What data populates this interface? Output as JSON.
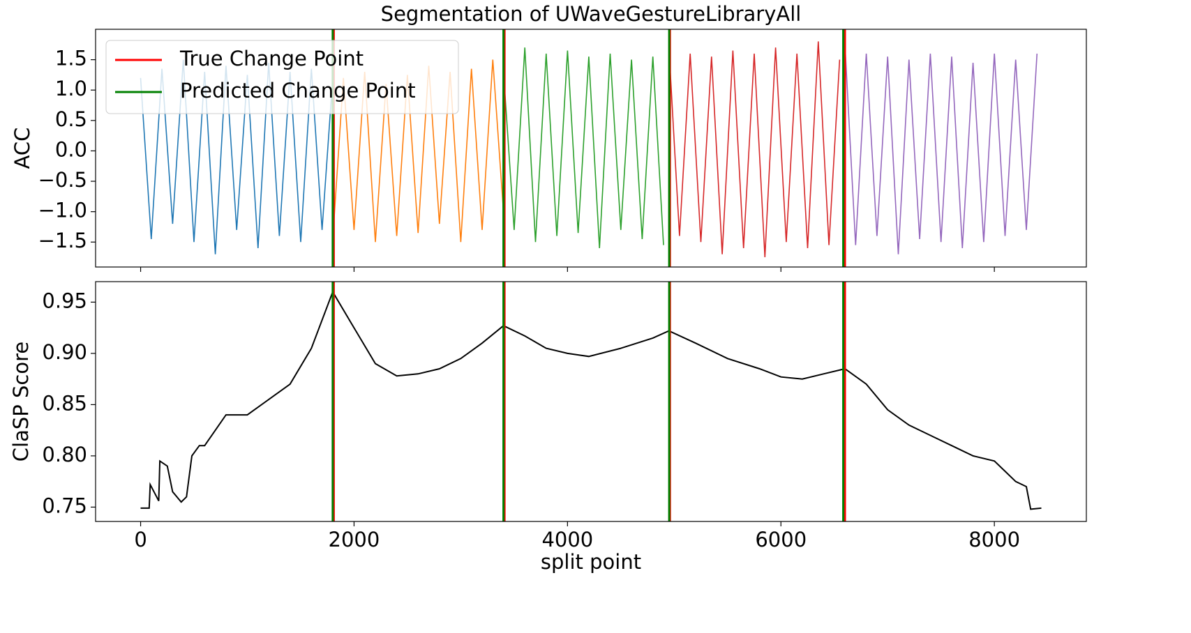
{
  "chart_data": [
    {
      "type": "line",
      "title": "Segmentation of UWaveGestureLibraryAll",
      "ylabel": "ACC",
      "xlim": [
        -422,
        8862
      ],
      "xticks": [
        0,
        2000,
        4000,
        6000,
        8000
      ],
      "ylim": [
        -1.91,
        2.0
      ],
      "yticks": [
        {
          "value": -1.5,
          "label": "−1.5"
        },
        {
          "value": -1.0,
          "label": "−1.0"
        },
        {
          "value": -0.5,
          "label": "−0.5"
        },
        {
          "value": 0,
          "label": "0.0"
        },
        0.5,
        {
          "value": 1.0,
          "label": "1.0"
        },
        1.5
      ],
      "legend": "upper left",
      "change_points": [
        {
          "name": "True Change Point",
          "color": "#ff0000",
          "x": [
            1810,
            3410,
            4960,
            6600
          ]
        },
        {
          "name": "Predicted Change Point",
          "color": "#008000",
          "x": [
            1800,
            3400,
            4953,
            6584
          ]
        }
      ],
      "series": [
        {
          "color": "#1f77b4",
          "x": [
            0,
            100,
            200,
            300,
            400,
            500,
            600,
            700,
            800,
            900,
            1000,
            1100,
            1200,
            1300,
            1400,
            1500,
            1600,
            1700,
            1800
          ],
          "values": [
            1.2,
            -1.45,
            1.35,
            -1.2,
            1.5,
            -1.5,
            1.3,
            -1.7,
            1.4,
            -1.3,
            1.25,
            -1.6,
            1.45,
            -1.4,
            1.3,
            -1.5,
            1.35,
            -1.3,
            1.2
          ]
        },
        {
          "color": "#ff7f0e",
          "x": [
            1800,
            1900,
            2000,
            2100,
            2200,
            2300,
            2400,
            2500,
            2600,
            2700,
            2800,
            2900,
            3000,
            3100,
            3200,
            3300,
            3400
          ],
          "values": [
            -1.45,
            1.2,
            -1.3,
            1.3,
            -1.5,
            1.1,
            -1.4,
            1.25,
            -1.35,
            1.4,
            -1.2,
            1.3,
            -1.5,
            1.35,
            -1.3,
            1.5,
            -1.0
          ]
        },
        {
          "color": "#2ca02c",
          "x": [
            3400,
            3500,
            3600,
            3700,
            3800,
            3900,
            4000,
            4100,
            4200,
            4300,
            4400,
            4500,
            4600,
            4700,
            4800,
            4900
          ],
          "values": [
            1.3,
            -1.3,
            1.7,
            -1.5,
            1.6,
            -1.4,
            1.65,
            -1.35,
            1.55,
            -1.6,
            1.6,
            -1.3,
            1.5,
            -1.45,
            1.55,
            -1.55
          ]
        },
        {
          "color": "#d62728",
          "x": [
            4950,
            5050,
            5150,
            5250,
            5350,
            5450,
            5550,
            5650,
            5750,
            5850,
            5950,
            6050,
            6150,
            6250,
            6350,
            6450,
            6550
          ],
          "values": [
            1.7,
            -1.4,
            1.6,
            -1.5,
            1.55,
            -1.7,
            1.65,
            -1.6,
            1.6,
            -1.75,
            1.7,
            -1.5,
            1.6,
            -1.6,
            1.8,
            -1.55,
            1.5
          ]
        },
        {
          "color": "#9467bd",
          "x": [
            6600,
            6700,
            6800,
            6900,
            7000,
            7100,
            7200,
            7300,
            7400,
            7500,
            7600,
            7700,
            7800,
            7900,
            8000,
            8100,
            8200,
            8300,
            8400
          ],
          "values": [
            1.75,
            -1.55,
            1.6,
            -1.4,
            1.55,
            -1.7,
            1.5,
            -1.45,
            1.6,
            -1.5,
            1.55,
            -1.6,
            1.45,
            -1.5,
            1.6,
            -1.4,
            1.5,
            -1.3,
            1.6
          ]
        }
      ]
    },
    {
      "type": "line",
      "xlabel": "split point",
      "ylabel": "ClaSP Score",
      "xlim": [
        -422,
        8862
      ],
      "xticks": [
        0,
        2000,
        4000,
        6000,
        8000
      ],
      "ylim": [
        0.736,
        0.97
      ],
      "yticks": [
        0.75,
        {
          "value": 0.8,
          "label": "0.80"
        },
        0.85,
        {
          "value": 0.9,
          "label": "0.90"
        },
        0.95
      ],
      "series": [
        {
          "color": "#000000",
          "x": [
            0,
            80,
            90,
            150,
            170,
            180,
            250,
            300,
            380,
            430,
            480,
            550,
            600,
            700,
            800,
            1000,
            1200,
            1400,
            1600,
            1800,
            2000,
            2200,
            2400,
            2600,
            2800,
            3000,
            3200,
            3400,
            3600,
            3800,
            4000,
            4200,
            4500,
            4800,
            4950,
            5200,
            5500,
            5800,
            6000,
            6200,
            6400,
            6600,
            6800,
            7000,
            7200,
            7400,
            7600,
            7800,
            8000,
            8100,
            8200,
            8300,
            8340,
            8440
          ],
          "values": [
            0.749,
            0.749,
            0.772,
            0.76,
            0.756,
            0.795,
            0.79,
            0.765,
            0.755,
            0.76,
            0.8,
            0.81,
            0.81,
            0.825,
            0.84,
            0.84,
            0.855,
            0.87,
            0.905,
            0.96,
            0.925,
            0.89,
            0.878,
            0.88,
            0.885,
            0.895,
            0.91,
            0.927,
            0.917,
            0.905,
            0.9,
            0.897,
            0.905,
            0.915,
            0.922,
            0.91,
            0.895,
            0.885,
            0.877,
            0.875,
            0.88,
            0.885,
            0.87,
            0.845,
            0.83,
            0.82,
            0.81,
            0.8,
            0.795,
            0.785,
            0.775,
            0.77,
            0.748,
            0.749
          ]
        }
      ]
    }
  ]
}
